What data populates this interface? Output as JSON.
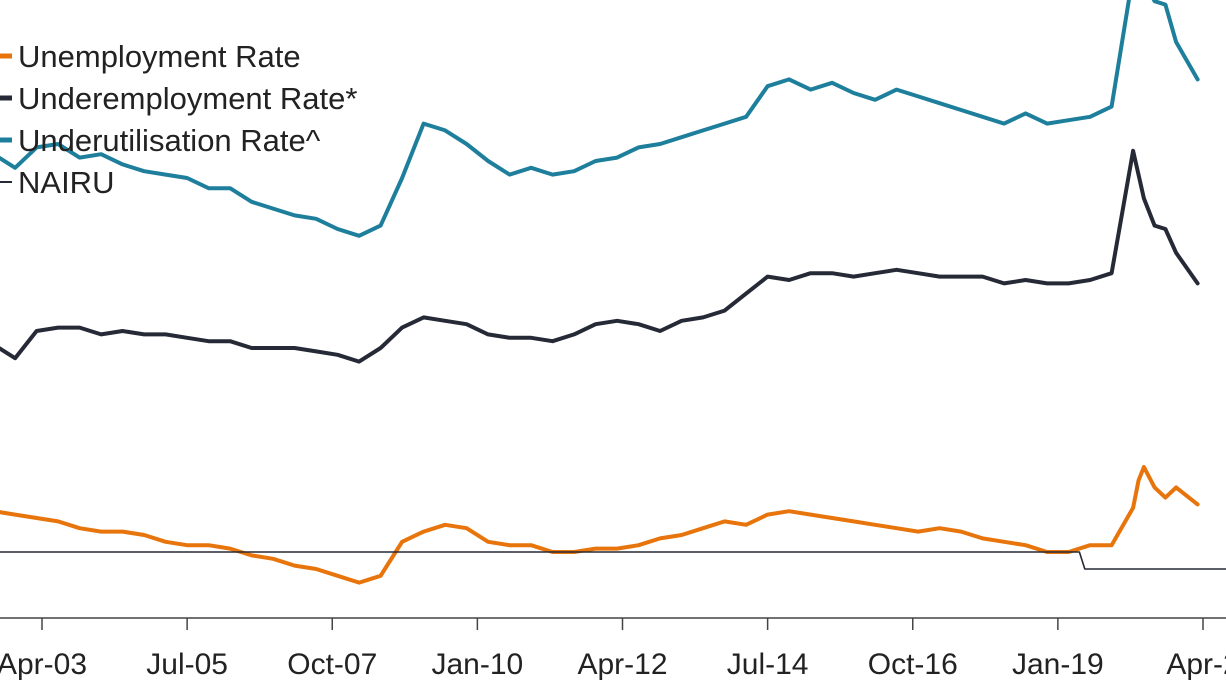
{
  "chart_data": {
    "type": "line",
    "title": "",
    "xlabel": "",
    "ylabel": "",
    "x_tick_labels": [
      "Apr-03",
      "Jul-05",
      "Oct-07",
      "Jan-10",
      "Apr-12",
      "Jul-14",
      "Oct-16",
      "Jan-19",
      "Apr-2"
    ],
    "grid": false,
    "legend_placement": "top-left",
    "colors": {
      "Unemployment Rate": "#e8740c",
      "Underemployment Rate*": "#262a36",
      "Underutilisation Rate^": "#1e7f9c",
      "NAIRU": "#262a36"
    },
    "series": [
      {
        "name": "Underutilisation Rate^",
        "x": [
          "2002-07",
          "2002-11",
          "2003-03",
          "2003-07",
          "2003-11",
          "2004-03",
          "2004-07",
          "2004-11",
          "2005-03",
          "2005-07",
          "2005-11",
          "2006-03",
          "2006-07",
          "2006-11",
          "2007-03",
          "2007-07",
          "2007-11",
          "2008-03",
          "2008-07",
          "2008-11",
          "2009-03",
          "2009-07",
          "2009-11",
          "2010-03",
          "2010-07",
          "2010-11",
          "2011-03",
          "2011-07",
          "2011-11",
          "2012-03",
          "2012-07",
          "2012-11",
          "2013-03",
          "2013-07",
          "2013-11",
          "2014-03",
          "2014-07",
          "2014-11",
          "2015-03",
          "2015-07",
          "2015-11",
          "2016-03",
          "2016-07",
          "2016-11",
          "2017-03",
          "2017-07",
          "2017-11",
          "2018-03",
          "2018-07",
          "2018-11",
          "2019-03",
          "2019-07",
          "2019-11",
          "2020-03",
          "2020-04",
          "2020-05",
          "2020-07",
          "2020-09",
          "2020-11",
          "2021-03"
        ],
        "values": [
          16.7,
          16.3,
          16.9,
          17.0,
          16.6,
          16.7,
          16.4,
          16.2,
          16.1,
          16.0,
          15.7,
          15.7,
          15.3,
          15.1,
          14.9,
          14.8,
          14.5,
          14.3,
          14.6,
          16.0,
          17.6,
          17.4,
          17.0,
          16.5,
          16.1,
          16.3,
          16.1,
          16.2,
          16.5,
          16.6,
          16.9,
          17.0,
          17.2,
          17.4,
          17.6,
          17.8,
          18.7,
          18.9,
          18.6,
          18.8,
          18.5,
          18.3,
          18.6,
          18.4,
          18.2,
          18.0,
          17.8,
          17.6,
          17.9,
          17.6,
          17.7,
          17.8,
          18.1,
          22.0,
          22.2,
          21.8,
          21.2,
          21.1,
          20.0,
          18.9
        ]
      },
      {
        "name": "Underemployment Rate*",
        "x": [
          "2002-07",
          "2002-11",
          "2003-03",
          "2003-07",
          "2003-11",
          "2004-03",
          "2004-07",
          "2004-11",
          "2005-03",
          "2005-07",
          "2005-11",
          "2006-03",
          "2006-07",
          "2006-11",
          "2007-03",
          "2007-07",
          "2007-11",
          "2008-03",
          "2008-07",
          "2008-11",
          "2009-03",
          "2009-07",
          "2009-11",
          "2010-03",
          "2010-07",
          "2010-11",
          "2011-03",
          "2011-07",
          "2011-11",
          "2012-03",
          "2012-07",
          "2012-11",
          "2013-03",
          "2013-07",
          "2013-11",
          "2014-03",
          "2014-07",
          "2014-11",
          "2015-03",
          "2015-07",
          "2015-11",
          "2016-03",
          "2016-07",
          "2016-11",
          "2017-03",
          "2017-07",
          "2017-11",
          "2018-03",
          "2018-07",
          "2018-11",
          "2019-03",
          "2019-07",
          "2019-11",
          "2020-03",
          "2020-04",
          "2020-05",
          "2020-07",
          "2020-09",
          "2020-11",
          "2021-03"
        ],
        "values": [
          11.1,
          10.7,
          11.5,
          11.6,
          11.6,
          11.4,
          11.5,
          11.4,
          11.4,
          11.3,
          11.2,
          11.2,
          11.0,
          11.0,
          11.0,
          10.9,
          10.8,
          10.6,
          11.0,
          11.6,
          11.9,
          11.8,
          11.7,
          11.4,
          11.3,
          11.3,
          11.2,
          11.4,
          11.7,
          11.8,
          11.7,
          11.5,
          11.8,
          11.9,
          12.1,
          12.6,
          13.1,
          13.0,
          13.2,
          13.2,
          13.1,
          13.2,
          13.3,
          13.2,
          13.1,
          13.1,
          13.1,
          12.9,
          13.0,
          12.9,
          12.9,
          13.0,
          13.2,
          16.8,
          16.1,
          15.4,
          14.6,
          14.5,
          13.8,
          12.9
        ]
      },
      {
        "name": "Unemployment Rate",
        "x": [
          "2002-07",
          "2002-11",
          "2003-03",
          "2003-07",
          "2003-11",
          "2004-03",
          "2004-07",
          "2004-11",
          "2005-03",
          "2005-07",
          "2005-11",
          "2006-03",
          "2006-07",
          "2006-11",
          "2007-03",
          "2007-07",
          "2007-11",
          "2008-03",
          "2008-07",
          "2008-11",
          "2009-03",
          "2009-07",
          "2009-11",
          "2010-03",
          "2010-07",
          "2010-11",
          "2011-03",
          "2011-07",
          "2011-11",
          "2012-03",
          "2012-07",
          "2012-11",
          "2013-03",
          "2013-07",
          "2013-11",
          "2014-03",
          "2014-07",
          "2014-11",
          "2015-03",
          "2015-07",
          "2015-11",
          "2016-03",
          "2016-07",
          "2016-11",
          "2017-03",
          "2017-07",
          "2017-11",
          "2018-03",
          "2018-07",
          "2018-11",
          "2019-03",
          "2019-07",
          "2019-11",
          "2020-03",
          "2020-04",
          "2020-05",
          "2020-07",
          "2020-09",
          "2020-11",
          "2021-03"
        ],
        "values": [
          6.2,
          6.1,
          6.0,
          5.9,
          5.7,
          5.6,
          5.6,
          5.5,
          5.3,
          5.2,
          5.2,
          5.1,
          4.9,
          4.8,
          4.6,
          4.5,
          4.3,
          4.1,
          4.3,
          5.3,
          5.6,
          5.8,
          5.7,
          5.3,
          5.2,
          5.2,
          5.0,
          5.0,
          5.1,
          5.1,
          5.2,
          5.4,
          5.5,
          5.7,
          5.9,
          5.8,
          6.1,
          6.2,
          6.1,
          6.0,
          5.9,
          5.8,
          5.7,
          5.6,
          5.7,
          5.6,
          5.4,
          5.3,
          5.2,
          5.0,
          5.0,
          5.2,
          5.2,
          6.3,
          7.1,
          7.5,
          6.9,
          6.6,
          6.9,
          6.4
        ]
      },
      {
        "name": "NAIRU",
        "x": [
          "2002-03",
          "2019-05",
          "2019-06",
          "2021-12"
        ],
        "values": [
          5.0,
          5.0,
          4.5,
          4.5
        ]
      }
    ]
  },
  "legend": {
    "unemployment": "Unemployment Rate",
    "underemployment": "Underemployment Rate*",
    "underutilisation": "Underutilisation Rate^",
    "nairu": "NAIRU"
  }
}
